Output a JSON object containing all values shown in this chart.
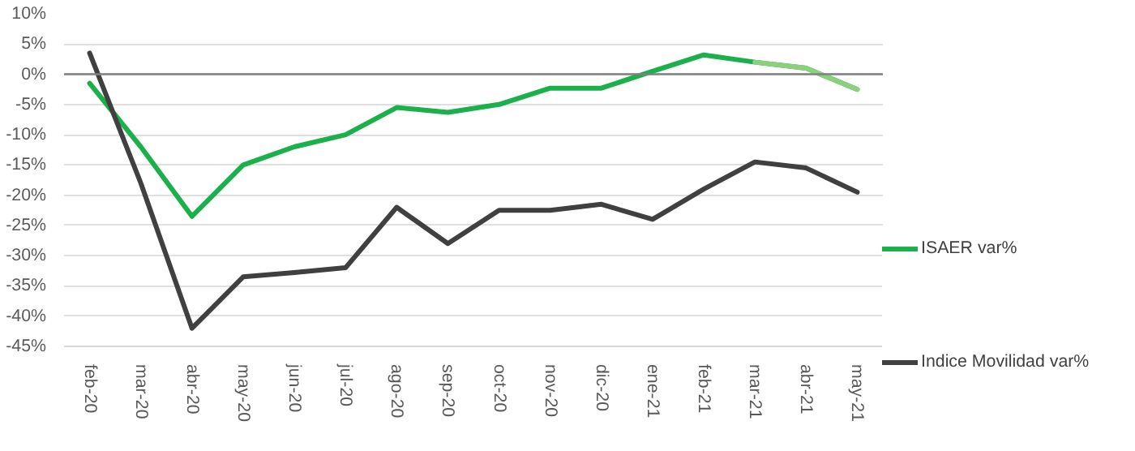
{
  "chart_data": {
    "type": "line",
    "categories": [
      "feb-20",
      "mar-20",
      "abr-20",
      "may-20",
      "jun-20",
      "jul-20",
      "ago-20",
      "sep-20",
      "oct-20",
      "nov-20",
      "dic-20",
      "ene-21",
      "feb-21",
      "mar-21",
      "abr-21",
      "may-21"
    ],
    "series": [
      {
        "name": "ISAER var%",
        "color": "#1ab04a",
        "values": [
          -1.5,
          -12,
          -23.5,
          -15,
          -12,
          -10,
          -5.5,
          -6.3,
          -5,
          -2.3,
          -2.3,
          0.5,
          3.2,
          2,
          1,
          -2.5
        ]
      },
      {
        "color": "#8ccf7e",
        "values": [
          null,
          null,
          null,
          null,
          null,
          null,
          null,
          null,
          null,
          null,
          null,
          null,
          null,
          2,
          1,
          -2.5
        ]
      },
      {
        "name": "Indice Movilidad var%",
        "color": "#404040",
        "values": [
          3.5,
          -18,
          -42,
          -33.5,
          -32.8,
          -32,
          -22,
          -28,
          -22.5,
          -22.5,
          -21.5,
          -24,
          -19,
          -14.5,
          -15.5,
          -19.5
        ]
      }
    ],
    "ylim": [
      -45,
      10
    ],
    "yticks": [
      {
        "value": -45,
        "label": "-45%"
      },
      {
        "value": -40,
        "label": "-40%"
      },
      {
        "value": -35,
        "label": "-35%"
      },
      {
        "value": -30,
        "label": "-30%"
      },
      {
        "value": -25,
        "label": "-25%"
      },
      {
        "value": -20,
        "label": "-20%"
      },
      {
        "value": -15,
        "label": "-15%"
      },
      {
        "value": -10,
        "label": "-10%"
      },
      {
        "value": -5,
        "label": "-5%"
      },
      {
        "value": 0,
        "label": "0%"
      },
      {
        "value": 5,
        "label": "5%"
      },
      {
        "value": 10,
        "label": "10%"
      }
    ],
    "ref_lines": [
      {
        "axis": "y",
        "value": 0,
        "color": "#808080"
      }
    ],
    "grid": "y",
    "legend": "right",
    "marker": "none",
    "line_style": "solid"
  }
}
